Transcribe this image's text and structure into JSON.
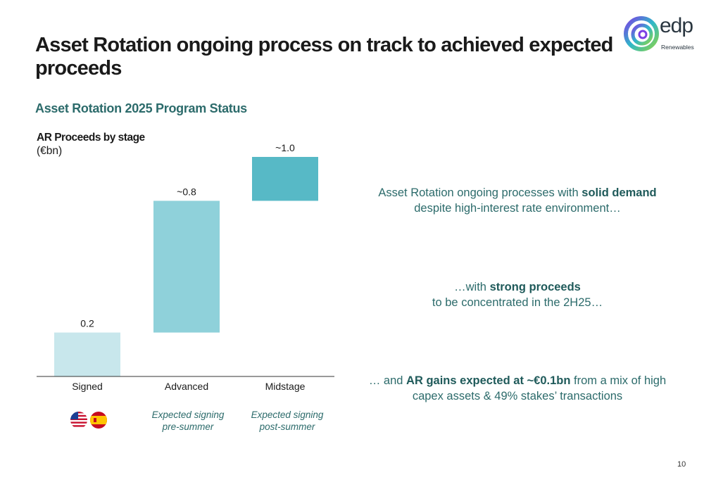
{
  "header": {
    "title": "Asset Rotation ongoing process on track to achieved expected proceeds",
    "logo_word": "edp",
    "logo_sub": "Renewables"
  },
  "section": {
    "subtitle": "Asset Rotation 2025 Program Status"
  },
  "chart_data": {
    "type": "bar",
    "title": "AR Proceeds by stage",
    "unit": "(€bn)",
    "categories": [
      "Signed",
      "Advanced",
      "Midstage"
    ],
    "values": [
      0.2,
      0.8,
      1.0
    ],
    "data_labels": [
      "0.2",
      "~0.8",
      "~1.0"
    ],
    "colors": [
      "#c8e7ec",
      "#8fd1da",
      "#57b9c6"
    ],
    "legend": "none",
    "grid": false
  },
  "stage_notes": {
    "signed_flags": [
      "us-flag-icon",
      "spain-flag-icon"
    ],
    "advanced": {
      "line1": "Expected signing",
      "line2": "pre-summer"
    },
    "midstage": {
      "line1": "Expected signing",
      "line2": "post-summer"
    }
  },
  "messages": [
    {
      "t1": "Asset Rotation ongoing processes with ",
      "b1": "solid demand",
      "t2": "despite high-interest rate environment…"
    },
    {
      "t1": "…with ",
      "b1": "strong proceeds",
      "t2": "to be concentrated in the 2H25…"
    },
    {
      "t1": "… and ",
      "b1": "AR gains expected at ~€0.1bn",
      "t2": " from a mix of high",
      "t3": "capex assets & 49% stakes’ transactions"
    }
  ],
  "page_number": "10"
}
